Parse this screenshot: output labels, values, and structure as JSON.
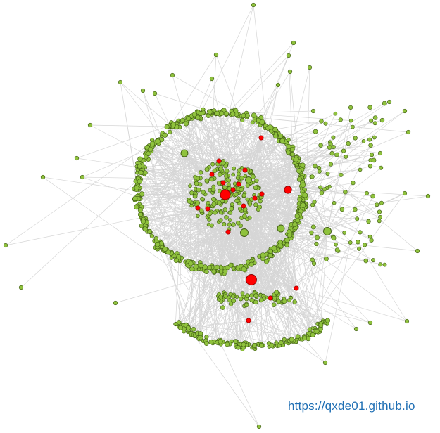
{
  "watermark": {
    "text": "https://qxde01.github.io"
  },
  "colors": {
    "background": "#ffffff",
    "edge": "#c8c8c8",
    "node_fill": "#8fc23d",
    "node_stroke": "#3e5a12",
    "hub_fill": "#ff0000",
    "hub_stroke": "#8a0000",
    "link": "#1f6fb4"
  }
}
